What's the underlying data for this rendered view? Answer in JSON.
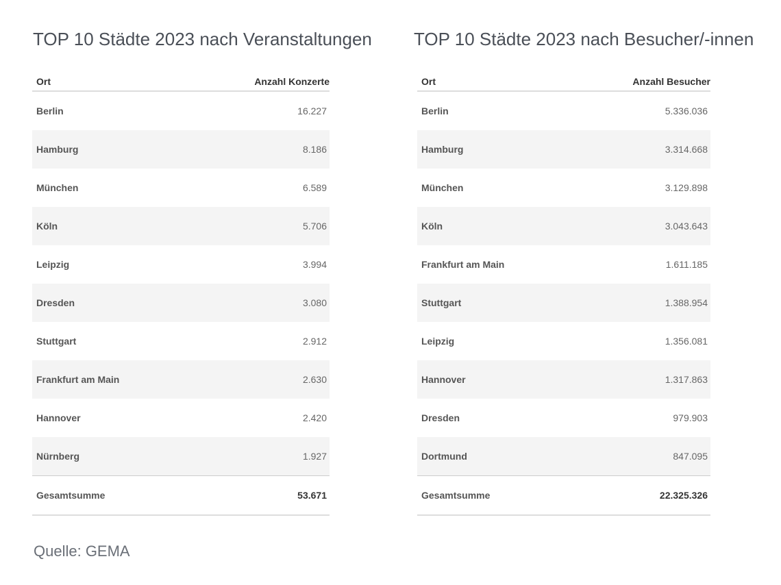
{
  "left": {
    "title": "TOP 10 Städte 2023 nach Veranstaltungen",
    "col_place": "Ort",
    "col_value": "Anzahl Konzerte",
    "rows": [
      {
        "place": "Berlin",
        "value": "16.227"
      },
      {
        "place": "Hamburg",
        "value": "8.186"
      },
      {
        "place": "München",
        "value": "6.589"
      },
      {
        "place": "Köln",
        "value": "5.706"
      },
      {
        "place": "Leipzig",
        "value": "3.994"
      },
      {
        "place": "Dresden",
        "value": "3.080"
      },
      {
        "place": "Stuttgart",
        "value": "2.912"
      },
      {
        "place": "Frankfurt am Main",
        "value": "2.630"
      },
      {
        "place": "Hannover",
        "value": "2.420"
      },
      {
        "place": "Nürnberg",
        "value": "1.927"
      }
    ],
    "total_label": "Gesamtsumme",
    "total_value": "53.671"
  },
  "right": {
    "title": "TOP 10 Städte 2023 nach Besucher/-innen",
    "col_place": "Ort",
    "col_value": "Anzahl Besucher",
    "rows": [
      {
        "place": "Berlin",
        "value": "5.336.036"
      },
      {
        "place": "Hamburg",
        "value": "3.314.668"
      },
      {
        "place": "München",
        "value": "3.129.898"
      },
      {
        "place": "Köln",
        "value": "3.043.643"
      },
      {
        "place": "Frankfurt am Main",
        "value": "1.611.185"
      },
      {
        "place": "Stuttgart",
        "value": "1.388.954"
      },
      {
        "place": "Leipzig",
        "value": "1.356.081"
      },
      {
        "place": "Hannover",
        "value": "1.317.863"
      },
      {
        "place": "Dresden",
        "value": "979.903"
      },
      {
        "place": "Dortmund",
        "value": "847.095"
      }
    ],
    "total_label": "Gesamtsumme",
    "total_value": "22.325.326"
  },
  "source": "Quelle: GEMA"
}
